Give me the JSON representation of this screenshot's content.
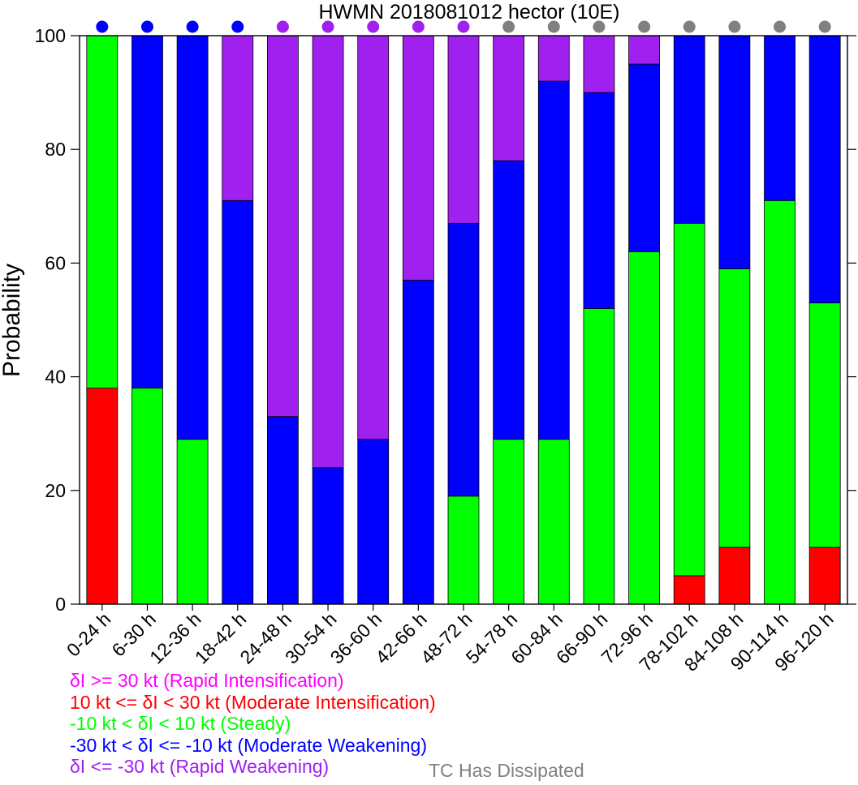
{
  "chart_data": {
    "type": "bar",
    "stacked": true,
    "title": "HWMN 2018081012 hector (10E)",
    "xlabel": "",
    "ylabel": "Probability",
    "ylim": [
      0,
      100
    ],
    "yticks": [
      0,
      20,
      40,
      60,
      80,
      100
    ],
    "categories": [
      "0-24 h",
      "6-30 h",
      "12-36 h",
      "18-42 h",
      "24-48 h",
      "30-54 h",
      "36-60 h",
      "42-66 h",
      "48-72 h",
      "54-78 h",
      "60-84 h",
      "66-90 h",
      "72-96 h",
      "78-102 h",
      "84-108 h",
      "90-114 h",
      "96-120 h"
    ],
    "series": [
      {
        "name": "δI >= 30 kt (Rapid Intensification)",
        "color": "#ff00ff",
        "values": [
          0,
          0,
          0,
          0,
          0,
          0,
          0,
          0,
          0,
          0,
          0,
          0,
          0,
          0,
          0,
          0,
          0
        ]
      },
      {
        "name": "10 kt <= δI < 30 kt (Moderate Intensification)",
        "color": "#ff0000",
        "values": [
          38,
          0,
          0,
          0,
          0,
          0,
          0,
          0,
          0,
          0,
          0,
          0,
          0,
          5,
          10,
          0,
          10
        ]
      },
      {
        "name": "-10 kt < δI < 10 kt (Steady)",
        "color": "#00ff00",
        "values": [
          62,
          38,
          29,
          0,
          0,
          0,
          0,
          0,
          19,
          29,
          29,
          52,
          62,
          62,
          49,
          71,
          43
        ]
      },
      {
        "name": "-30 kt < δI <= -10 kt (Moderate Weakening)",
        "color": "#0000ff",
        "values": [
          0,
          62,
          71,
          71,
          33,
          24,
          29,
          57,
          48,
          49,
          63,
          38,
          33,
          33,
          41,
          29,
          47
        ]
      },
      {
        "name": "δI <= -30 kt (Rapid Weakening)",
        "color": "#a020f0",
        "values": [
          0,
          0,
          0,
          29,
          67,
          76,
          71,
          43,
          33,
          22,
          8,
          10,
          5,
          0,
          0,
          0,
          0
        ]
      }
    ],
    "top_markers": {
      "colors": [
        "#0000ff",
        "#0000ff",
        "#0000ff",
        "#0000ff",
        "#a020f0",
        "#a020f0",
        "#a020f0",
        "#a020f0",
        "#a020f0",
        "#808080",
        "#808080",
        "#808080",
        "#808080",
        "#808080",
        "#808080",
        "#808080",
        "#808080"
      ]
    },
    "dissipated_label": "TC Has Dissipated",
    "dissipated_color": "#808080",
    "grid": false,
    "legend_placement": "bottom-left"
  }
}
